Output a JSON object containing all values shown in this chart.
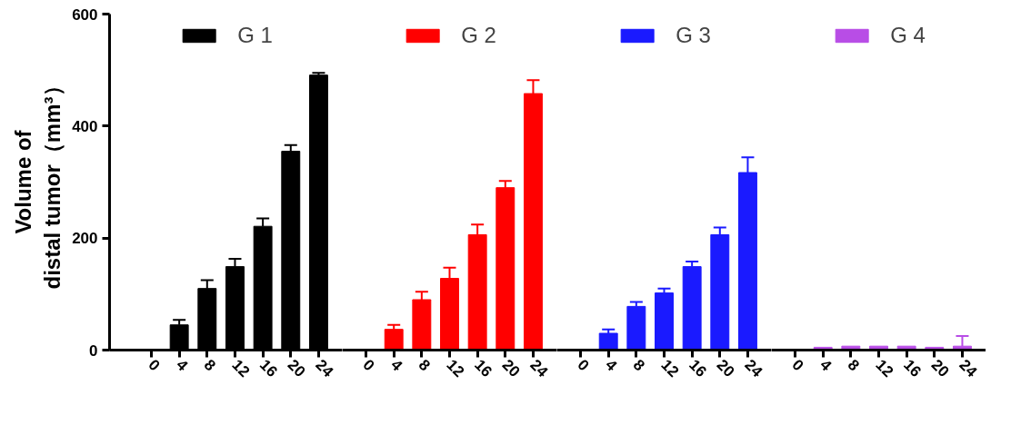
{
  "chart_data": [
    {
      "type": "bar",
      "ylabel": "Volume of\ndistal tumor（mm³）",
      "categories": [
        "0",
        "4",
        "8",
        "12",
        "16",
        "20",
        "24"
      ],
      "series": [
        {
          "name": "G 1",
          "color": "#000000",
          "values": [
            0,
            45,
            110,
            149,
            221,
            355,
            491
          ],
          "errors": [
            null,
            9,
            15,
            14,
            14,
            11,
            4
          ]
        }
      ],
      "ylim": [
        0,
        600
      ],
      "yticks": [
        0,
        200,
        400,
        600
      ],
      "legend": "top",
      "grid": false
    },
    {
      "type": "bar",
      "categories": [
        "0",
        "4",
        "8",
        "12",
        "16",
        "20",
        "24"
      ],
      "series": [
        {
          "name": "G 2",
          "color": "#ff0000",
          "values": [
            0,
            37,
            90,
            128,
            206,
            290,
            458
          ],
          "errors": [
            null,
            8,
            14,
            19,
            18,
            12,
            24
          ]
        }
      ],
      "ylim": [
        0,
        600
      ],
      "tick_labels": "x",
      "legend": "top"
    },
    {
      "type": "bar",
      "categories": [
        "0",
        "4",
        "8",
        "12",
        "16",
        "20",
        "24"
      ],
      "series": [
        {
          "name": "G 3",
          "color": "#1a1aff",
          "values": [
            0,
            30,
            78,
            102,
            149,
            206,
            317
          ],
          "errors": [
            null,
            7,
            8,
            8,
            9,
            13,
            27
          ]
        }
      ],
      "ylim": [
        0,
        600
      ],
      "tick_labels": "x",
      "legend": "top"
    },
    {
      "type": "bar",
      "categories": [
        "0",
        "4",
        "8",
        "12",
        "16",
        "20",
        "24"
      ],
      "series": [
        {
          "name": "G 4",
          "color": "#b84de6",
          "values": [
            0,
            5,
            7,
            7,
            7,
            5,
            7
          ],
          "errors": [
            null,
            null,
            null,
            null,
            null,
            null,
            18
          ]
        }
      ],
      "ylim": [
        0,
        600
      ],
      "tick_labels": "x",
      "legend": "top",
      "grid": false
    }
  ]
}
